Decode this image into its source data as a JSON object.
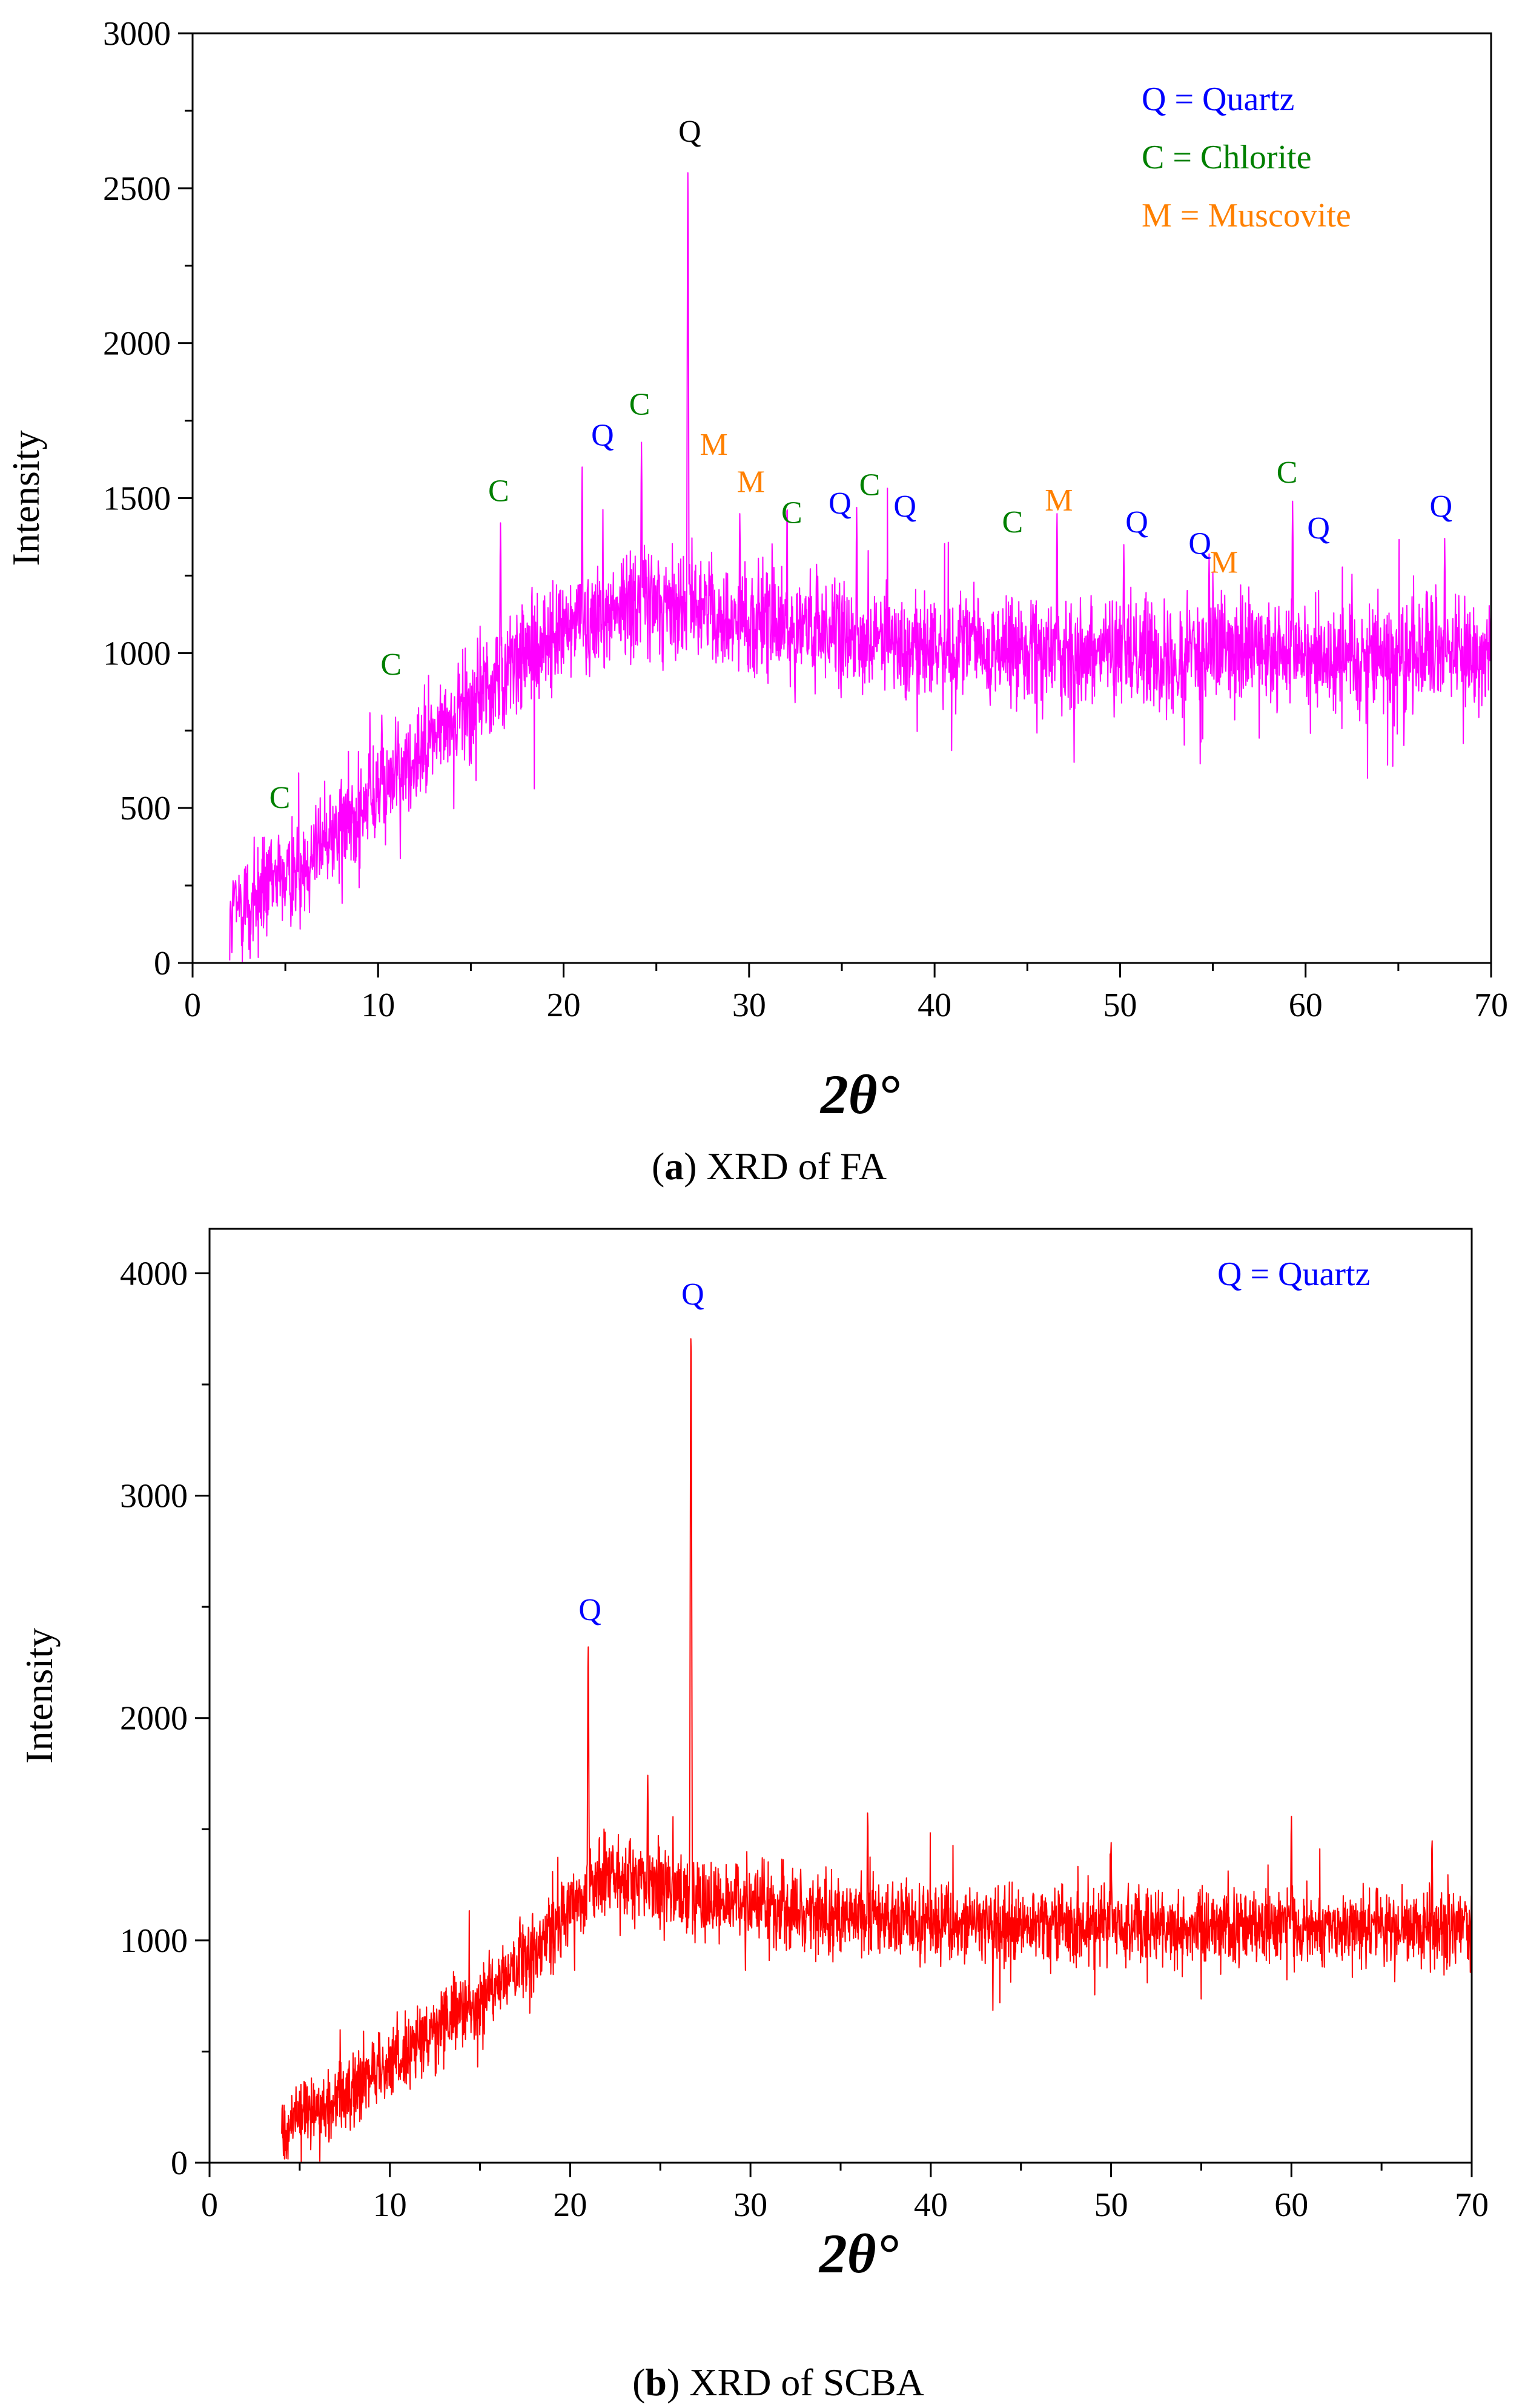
{
  "figure": {
    "panels": [
      {
        "label": "a",
        "caption": "XRD of FA"
      },
      {
        "label": "b",
        "caption": "XRD of SCBA"
      }
    ]
  },
  "colors": {
    "series_a": "#ff00ff",
    "series_b": "#ff0000",
    "quartz": "#0000ff",
    "chlorite": "#008000",
    "muscovite": "#ff8000",
    "axis": "#000000"
  },
  "chart_data": [
    {
      "type": "line",
      "title": "",
      "xlabel": "2θ°",
      "ylabel": "Intensity",
      "xlim": [
        0,
        70
      ],
      "ylim": [
        0,
        3000
      ],
      "xticks": [
        "0",
        "10",
        "20",
        "30",
        "40",
        "50",
        "60",
        "70"
      ],
      "yticks": [
        "0",
        "500",
        "1000",
        "1500",
        "2000",
        "2500",
        "3000"
      ],
      "legend": [
        {
          "text": "Q = Quartz",
          "color_key": "quartz"
        },
        {
          "text": "C = Chlorite",
          "color_key": "chlorite"
        },
        {
          "text": "M = Muscovite",
          "color_key": "muscovite"
        }
      ],
      "legend_position": "top-right",
      "series": [
        {
          "name": "FA",
          "color_key": "series_a",
          "baseline": [
            [
              2,
              150
            ],
            [
              5,
              280
            ],
            [
              10,
              550
            ],
            [
              15,
              850
            ],
            [
              20,
              1080
            ],
            [
              24,
              1180
            ],
            [
              27,
              1150
            ],
            [
              32,
              1080
            ],
            [
              40,
              1020
            ],
            [
              50,
              1000
            ],
            [
              60,
              1000
            ],
            [
              70,
              1000
            ]
          ],
          "noise": 150,
          "x_start": 2,
          "x_end": 70,
          "peaks": [
            [
              26.7,
              2550
            ],
            [
              21,
              1600
            ],
            [
              24.2,
              1680
            ],
            [
              16.6,
              1420
            ],
            [
              10.2,
              800
            ],
            [
              35.8,
              1470
            ],
            [
              59.3,
              1490
            ],
            [
              46.6,
              1450
            ],
            [
              50.2,
              1350
            ],
            [
              67.5,
              1370
            ],
            [
              29.5,
              1450
            ],
            [
              54.8,
              1320
            ]
          ]
        }
      ],
      "annotations": [
        {
          "text": "C",
          "x": 4.7,
          "y": 500,
          "color_key": "chlorite"
        },
        {
          "text": "C",
          "x": 10.7,
          "y": 930,
          "color_key": "chlorite"
        },
        {
          "text": "C",
          "x": 16.5,
          "y": 1490,
          "color_key": "chlorite"
        },
        {
          "text": "Q",
          "x": 22.1,
          "y": 1670,
          "color_key": "quartz"
        },
        {
          "text": "C",
          "x": 24.1,
          "y": 1770,
          "color_key": "chlorite"
        },
        {
          "text": "Q",
          "x": 26.8,
          "y": 2650,
          "color_key": "axis"
        },
        {
          "text": "M",
          "x": 28.1,
          "y": 1640,
          "color_key": "muscovite"
        },
        {
          "text": "M",
          "x": 30.1,
          "y": 1520,
          "color_key": "muscovite"
        },
        {
          "text": "C",
          "x": 32.3,
          "y": 1420,
          "color_key": "chlorite"
        },
        {
          "text": "Q",
          "x": 34.9,
          "y": 1450,
          "color_key": "quartz"
        },
        {
          "text": "C",
          "x": 36.5,
          "y": 1510,
          "color_key": "chlorite"
        },
        {
          "text": "Q",
          "x": 38.4,
          "y": 1440,
          "color_key": "quartz"
        },
        {
          "text": "C",
          "x": 44.2,
          "y": 1390,
          "color_key": "chlorite"
        },
        {
          "text": "M",
          "x": 46.7,
          "y": 1460,
          "color_key": "muscovite"
        },
        {
          "text": "Q",
          "x": 50.9,
          "y": 1390,
          "color_key": "quartz"
        },
        {
          "text": "Q",
          "x": 54.3,
          "y": 1320,
          "color_key": "quartz"
        },
        {
          "text": "M",
          "x": 55.6,
          "y": 1260,
          "color_key": "muscovite"
        },
        {
          "text": "C",
          "x": 59.0,
          "y": 1550,
          "color_key": "chlorite"
        },
        {
          "text": "Q",
          "x": 60.7,
          "y": 1370,
          "color_key": "quartz"
        },
        {
          "text": "Q",
          "x": 67.3,
          "y": 1440,
          "color_key": "quartz"
        }
      ]
    },
    {
      "type": "line",
      "title": "",
      "xlabel": "2θ°",
      "ylabel": "Intensity",
      "xlim": [
        0,
        70
      ],
      "ylim": [
        0,
        4200
      ],
      "xticks": [
        "0",
        "10",
        "20",
        "30",
        "40",
        "50",
        "60",
        "70"
      ],
      "yticks": [
        "0",
        "1000",
        "2000",
        "3000",
        "4000"
      ],
      "legend": [
        {
          "text": "Q = Quartz",
          "color_key": "quartz"
        }
      ],
      "legend_position": "top-right",
      "series": [
        {
          "name": "SCBA",
          "color_key": "series_b",
          "baseline": [
            [
              4,
              150
            ],
            [
              8,
              330
            ],
            [
              12,
              550
            ],
            [
              16,
              800
            ],
            [
              19,
              1050
            ],
            [
              22,
              1300
            ],
            [
              25,
              1250
            ],
            [
              28,
              1170
            ],
            [
              35,
              1100
            ],
            [
              45,
              1070
            ],
            [
              55,
              1060
            ],
            [
              70,
              1060
            ]
          ],
          "noise": 150,
          "x_start": 4,
          "x_end": 70,
          "peaks": [
            [
              26.7,
              3750
            ],
            [
              21.0,
              2330
            ],
            [
              24.3,
              1750
            ],
            [
              36.5,
              1580
            ],
            [
              60.0,
              1560
            ],
            [
              50.0,
              1450
            ],
            [
              67.8,
              1460
            ]
          ]
        }
      ],
      "annotations": [
        {
          "text": "Q",
          "x": 21.1,
          "y": 2440,
          "color_key": "quartz"
        },
        {
          "text": "Q",
          "x": 26.8,
          "y": 3860,
          "color_key": "quartz"
        }
      ]
    }
  ]
}
